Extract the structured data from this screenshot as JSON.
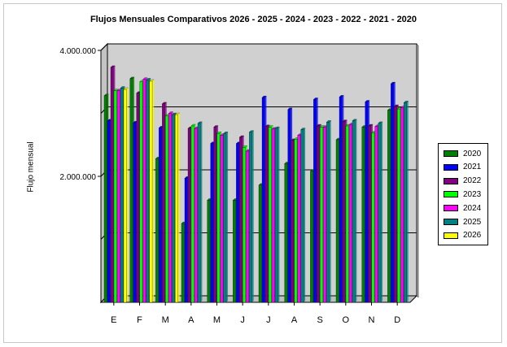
{
  "chart_data": {
    "type": "bar",
    "title": "Flujos Mensuales Comparativos 2026 - 2025 - 2024 - 2023 - 2022 - 2021 - 2020",
    "ylabel": "Flujo mensual",
    "xlabel": "",
    "categories": [
      "E",
      "F",
      "M",
      "A",
      "M",
      "J",
      "J",
      "A",
      "S",
      "O",
      "N",
      "D"
    ],
    "ylim": [
      0,
      4000000
    ],
    "yticks": [
      {
        "value": 2000000,
        "label": "2.000.000"
      },
      {
        "value": 4000000,
        "label": "4.000.000"
      }
    ],
    "grid": true,
    "legend_position": "right",
    "series": [
      {
        "name": "2020",
        "color": "#008000",
        "values": [
          3280000,
          3550000,
          2280000,
          1250000,
          1620000,
          1620000,
          1860000,
          2200000,
          2080000,
          2580000,
          2780000,
          3050000
        ]
      },
      {
        "name": "2021",
        "color": "#0000ff",
        "values": [
          2880000,
          2850000,
          2770000,
          1970000,
          2520000,
          2520000,
          3250000,
          3060000,
          3220000,
          3260000,
          3180000,
          3470000
        ]
      },
      {
        "name": "2022",
        "color": "#800080",
        "values": [
          3730000,
          3320000,
          3150000,
          2760000,
          2780000,
          2620000,
          2790000,
          2570000,
          2800000,
          2870000,
          2800000,
          3110000
        ]
      },
      {
        "name": "2023",
        "color": "#00ff00",
        "values": [
          3360000,
          3500000,
          2960000,
          2800000,
          2680000,
          2460000,
          2780000,
          2590000,
          2780000,
          2800000,
          2690000,
          3070000
        ]
      },
      {
        "name": "2024",
        "color": "#ff00ff",
        "values": [
          3360000,
          3540000,
          3000000,
          2760000,
          2650000,
          2400000,
          2750000,
          2650000,
          2780000,
          2820000,
          2790000,
          3090000
        ]
      },
      {
        "name": "2025",
        "color": "#008080",
        "values": [
          3400000,
          3530000,
          2980000,
          2840000,
          2680000,
          2700000,
          2760000,
          2740000,
          2860000,
          2880000,
          2840000,
          3170000
        ]
      },
      {
        "name": "2026",
        "color": "#ffff00",
        "values": [
          3380000,
          3510000,
          2980000,
          null,
          null,
          null,
          null,
          null,
          null,
          null,
          null,
          null
        ]
      }
    ]
  }
}
